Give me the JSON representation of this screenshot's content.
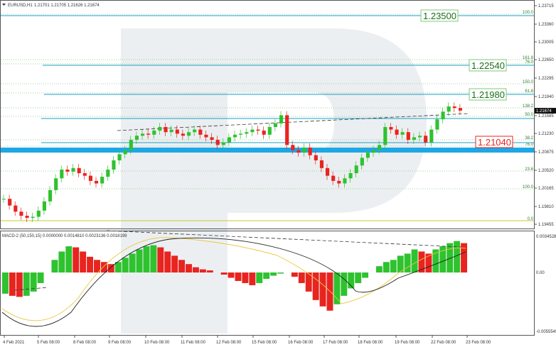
{
  "header": {
    "symbol": "EURUSD,H1",
    "ohlc": "1.21701 1.21705 1.21626 1.21674"
  },
  "macd_header": "MACD-2 (50,150,15) 0.0000000 0.0014810 0.0023136 0.0018199",
  "price_axis": [
    "1.23715",
    "1.23360",
    "1.23005",
    "1.22650",
    "1.22295",
    "1.21940",
    "1.21585",
    "1.21230",
    "1.20875",
    "1.20520",
    "1.20165",
    "1.19810",
    "1.19455"
  ],
  "macd_axis": [
    "0.0034528",
    "0.00",
    "-0.0055549"
  ],
  "time_axis": [
    "4 Feb 2021",
    "5 Feb 08:00",
    "8 Feb 08:00",
    "9 Feb 08:00",
    "10 Feb 08:00",
    "11 Feb 08:00",
    "12 Feb 08:00",
    "15 Feb 08:00",
    "16 Feb 08:00",
    "17 Feb 08:00",
    "18 Feb 08:00",
    "19 Feb 08:00",
    "22 Feb 08:00",
    "23 Feb 08:00"
  ],
  "current_price": "1.21674",
  "fib_left": [
    "100.0",
    "161.8",
    "76.0",
    "150.0",
    "61.8",
    "138.2",
    "50.0",
    "38.2",
    "76.0",
    "23.6",
    "100.0",
    "0.0"
  ],
  "level_labels": [
    "1.23500",
    "1.22540",
    "1.21980",
    "1.21040"
  ],
  "colors": {
    "bull": "#2fc22f",
    "bear": "#e8241f",
    "level": "#1e9fc8",
    "fib": "#7cc97a",
    "support": "#1ea7e6"
  },
  "chart_data": {
    "type": "candlestick",
    "price_series": [
      1.1995,
      1.1982,
      1.197,
      1.1962,
      1.1958,
      1.196,
      1.1972,
      1.199,
      1.2012,
      1.2035,
      1.2052,
      1.2048,
      1.2055,
      1.2045,
      1.204,
      1.203,
      1.2025,
      1.2038,
      1.2052,
      1.207,
      1.2082,
      1.209,
      1.211,
      1.2118,
      1.2122,
      1.212,
      1.2128,
      1.2135,
      1.2125,
      1.213,
      1.2122,
      1.2118,
      1.2125,
      1.213,
      1.212,
      1.2115,
      1.211,
      1.21,
      1.2105,
      1.2115,
      1.212,
      1.2122,
      1.2125,
      1.213,
      1.2128,
      1.212,
      1.2135,
      1.2142,
      1.2158,
      1.21,
      1.209,
      1.2085,
      1.2095,
      1.208,
      1.207,
      1.2055,
      1.204,
      1.203,
      1.2025,
      1.2035,
      1.2045,
      1.206,
      1.2075,
      1.2085,
      1.209,
      1.21,
      1.2135,
      1.213,
      1.212,
      1.2125,
      1.211,
      1.2115,
      1.2118,
      1.2105,
      1.213,
      1.215,
      1.2165,
      1.2175,
      1.2172,
      1.2167
    ],
    "macd_hist": [
      -0.002,
      -0.0022,
      -0.0023,
      -0.0022,
      -0.0018,
      -0.001,
      0.0,
      0.0012,
      0.002,
      0.0025,
      0.0024,
      0.002,
      0.0015,
      0.0012,
      0.001,
      0.0008,
      0.001,
      0.0014,
      0.0018,
      0.0022,
      0.0025,
      0.0026,
      0.0024,
      0.002,
      0.0016,
      0.0012,
      0.0008,
      0.0005,
      0.0003,
      0.0002,
      0.0,
      -0.0002,
      -0.0005,
      -0.0008,
      -0.001,
      -0.0012,
      -0.001,
      -0.0006,
      -0.0003,
      -0.0001,
      0.0,
      -0.0004,
      -0.001,
      -0.0018,
      -0.0026,
      -0.0032,
      -0.0036,
      -0.003,
      -0.0022,
      -0.0015,
      -0.001,
      -0.0005,
      0.0,
      0.0006,
      0.001,
      0.0012,
      0.0016,
      0.0018,
      0.0022,
      0.002,
      0.0018,
      0.0022,
      0.0025,
      0.0028,
      0.003,
      0.0028
    ]
  }
}
